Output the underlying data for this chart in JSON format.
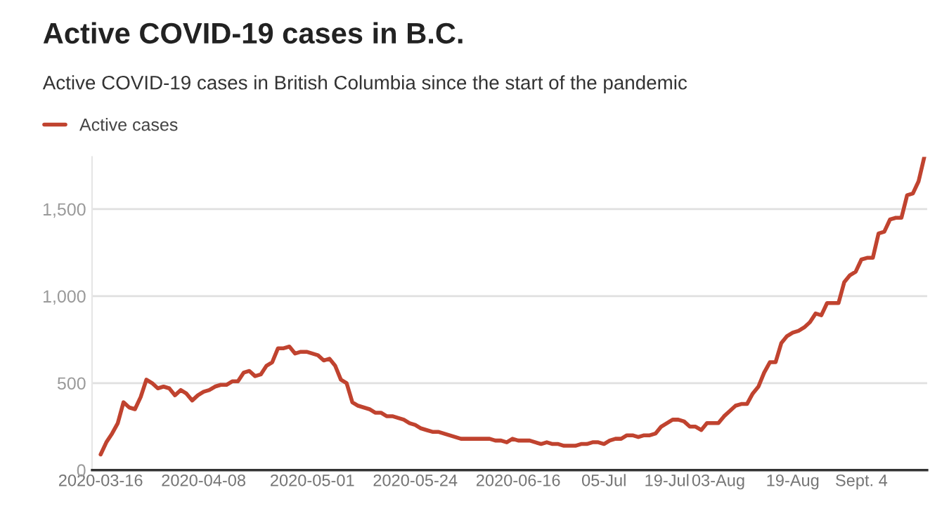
{
  "chart_data": {
    "type": "line",
    "title": "Active COVID-19 cases in B.C.",
    "subtitle": "Active COVID-19 cases in British Columbia since the start of the pandemic",
    "categories": [
      "2020-03-16",
      null,
      null,
      null,
      null,
      null,
      null,
      null,
      null,
      null,
      null,
      null,
      null,
      null,
      null,
      null,
      null,
      null,
      "2020-04-08",
      null,
      null,
      null,
      null,
      null,
      null,
      null,
      null,
      null,
      null,
      null,
      null,
      null,
      null,
      null,
      null,
      null,
      null,
      "2020-05-01",
      null,
      null,
      null,
      null,
      null,
      null,
      null,
      null,
      null,
      null,
      null,
      null,
      null,
      null,
      null,
      null,
      null,
      "2020-05-24",
      null,
      null,
      null,
      null,
      null,
      null,
      null,
      null,
      null,
      null,
      null,
      null,
      null,
      null,
      null,
      null,
      null,
      "2020-06-16",
      null,
      null,
      null,
      null,
      null,
      null,
      null,
      null,
      null,
      null,
      null,
      null,
      null,
      null,
      "05-Jul",
      null,
      null,
      null,
      null,
      null,
      null,
      null,
      null,
      null,
      null,
      "19-Jul",
      null,
      null,
      null,
      null,
      null,
      null,
      null,
      null,
      "03-Aug",
      null,
      null,
      null,
      null,
      null,
      null,
      null,
      null,
      null,
      null,
      null,
      null,
      "19-Aug",
      null,
      null,
      null,
      null,
      null,
      null,
      null,
      null,
      null,
      null,
      null,
      "Sept. 4",
      null,
      null,
      null,
      null,
      null,
      null,
      null,
      null,
      null,
      null,
      null
    ],
    "series": [
      {
        "name": "Active cases",
        "color": "#c0432f",
        "values": [
          90,
          160,
          210,
          270,
          390,
          360,
          350,
          420,
          520,
          500,
          470,
          480,
          470,
          430,
          460,
          440,
          400,
          430,
          450,
          460,
          480,
          490,
          490,
          510,
          510,
          560,
          570,
          540,
          550,
          600,
          620,
          700,
          700,
          710,
          670,
          680,
          680,
          670,
          660,
          630,
          640,
          600,
          520,
          500,
          390,
          370,
          360,
          350,
          330,
          330,
          310,
          310,
          300,
          290,
          270,
          260,
          240,
          230,
          220,
          220,
          210,
          200,
          190,
          180,
          180,
          180,
          180,
          180,
          180,
          170,
          170,
          160,
          180,
          170,
          170,
          170,
          160,
          150,
          160,
          150,
          150,
          140,
          140,
          140,
          150,
          150,
          160,
          160,
          150,
          170,
          180,
          180,
          200,
          200,
          190,
          200,
          200,
          210,
          250,
          270,
          290,
          290,
          280,
          250,
          250,
          230,
          270,
          270,
          270,
          310,
          340,
          370,
          380,
          380,
          440,
          480,
          560,
          620,
          620,
          730,
          770,
          790,
          800,
          820,
          850,
          900,
          890,
          960,
          960,
          960,
          1080,
          1120,
          1140,
          1210,
          1220,
          1220,
          1360,
          1370,
          1440,
          1450,
          1450,
          1580,
          1590,
          1660,
          1800
        ]
      }
    ],
    "ylim": [
      0,
      1800
    ],
    "yticks": [
      0,
      500,
      {
        "value": 1000,
        "label": "1,000"
      },
      {
        "value": 1500,
        "label": "1,500"
      }
    ],
    "grid": "y",
    "legend": "top left",
    "marker": "none",
    "line_style": "solid"
  }
}
